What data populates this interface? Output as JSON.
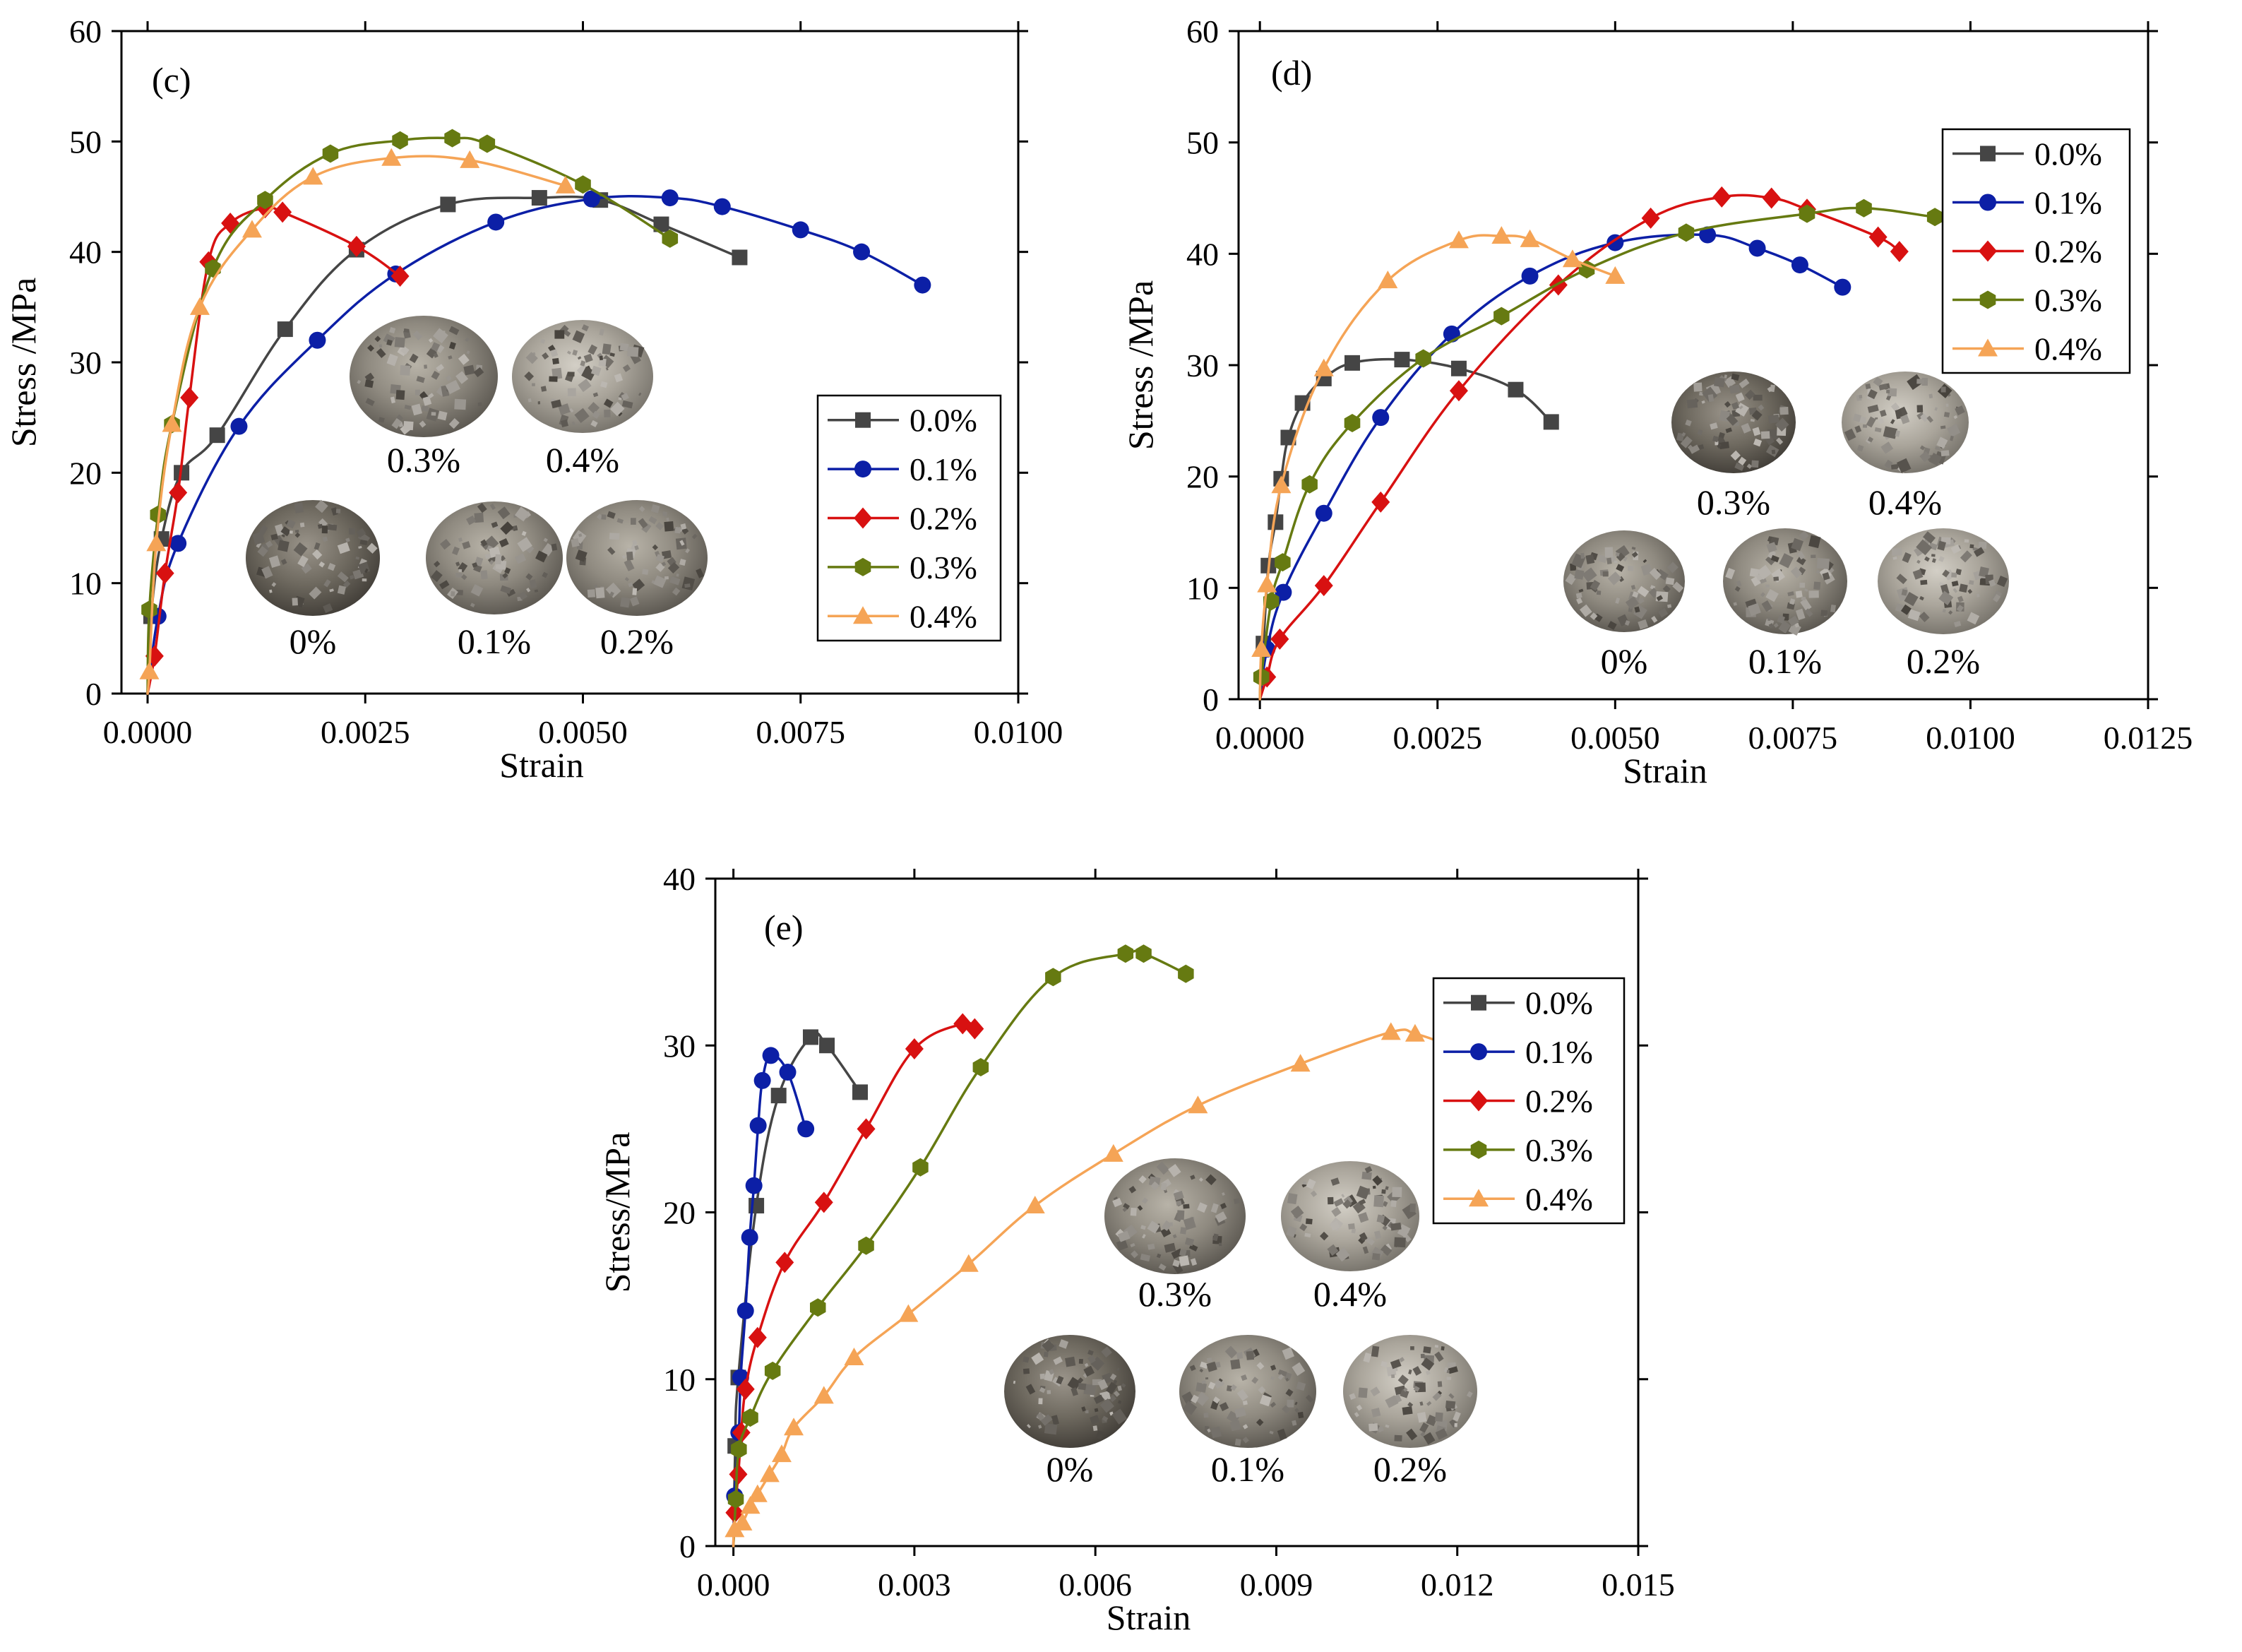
{
  "palette": {
    "0.0%": "#454545",
    "0.1%": "#0c1fa6",
    "0.2%": "#d81111",
    "0.3%": "#667a11",
    "0.4%": "#f5a456"
  },
  "photo_descriptions": {
    "0.3%": "pile of crushed stone aggregate sample",
    "0.4%": "pile of crushed stone aggregate sample",
    "0%": "pile of crushed stone aggregate sample",
    "0.1%": "pile of crushed stone aggregate sample",
    "0.2%": "pile of crushed stone aggregate sample"
  },
  "chart_data": [
    {
      "panel": "(c)",
      "type": "line",
      "xlabel": "Strain",
      "ylabel": "Stress /MPa",
      "xlim": [
        -0.0003,
        0.01
      ],
      "ylim": [
        0,
        60
      ],
      "xticks": [
        "0.0000",
        "0.0025",
        "0.0050",
        "0.0075",
        "0.0100"
      ],
      "xtick_values": [
        0,
        0.0025,
        0.005,
        0.0075,
        0.01
      ],
      "yticks": [
        "0",
        "10",
        "20",
        "30",
        "40",
        "50",
        "60"
      ],
      "ytick_values": [
        0,
        10,
        20,
        30,
        40,
        50,
        60
      ],
      "legend_position": "center-right",
      "photo_labels": [
        "0.3%",
        "0.4%",
        "0%",
        "0.1%",
        "0.2%"
      ],
      "series": [
        {
          "name": "0.0%",
          "marker": "square",
          "points": [
            [
              0,
              0
            ],
            [
              4e-05,
              7
            ],
            [
              0.00016,
              14
            ],
            [
              0.00039,
              20
            ],
            [
              0.0008,
              23.4
            ],
            [
              0.00158,
              33
            ],
            [
              0.0024,
              40.2
            ],
            [
              0.00345,
              44.3
            ],
            [
              0.0045,
              44.9
            ],
            [
              0.0052,
              44.7
            ],
            [
              0.0059,
              42.5
            ],
            [
              0.0068,
              39.5
            ]
          ]
        },
        {
          "name": "0.1%",
          "marker": "circle",
          "points": [
            [
              0,
              0
            ],
            [
              0.00012,
              7
            ],
            [
              0.00035,
              13.6
            ],
            [
              0.00105,
              24.2
            ],
            [
              0.00195,
              32
            ],
            [
              0.00285,
              38
            ],
            [
              0.004,
              42.7
            ],
            [
              0.0051,
              44.8
            ],
            [
              0.006,
              44.9
            ],
            [
              0.0066,
              44.1
            ],
            [
              0.0075,
              42
            ],
            [
              0.0082,
              40
            ],
            [
              0.0089,
              37
            ]
          ]
        },
        {
          "name": "0.2%",
          "marker": "diamond",
          "points": [
            [
              0,
              0
            ],
            [
              8e-05,
              3.4
            ],
            [
              0.0002,
              10.9
            ],
            [
              0.00035,
              18.2
            ],
            [
              0.00048,
              26.8
            ],
            [
              0.0007,
              39.1
            ],
            [
              0.00095,
              42.6
            ],
            [
              0.00135,
              44
            ],
            [
              0.00155,
              43.6
            ],
            [
              0.0024,
              40.5
            ],
            [
              0.0029,
              37.8
            ]
          ]
        },
        {
          "name": "0.3%",
          "marker": "hexagon",
          "points": [
            [
              0,
              0
            ],
            [
              2e-05,
              7.6
            ],
            [
              0.00012,
              16.2
            ],
            [
              0.00028,
              24.4
            ],
            [
              0.00075,
              38.5
            ],
            [
              0.00135,
              44.7
            ],
            [
              0.0021,
              48.9
            ],
            [
              0.0029,
              50.1
            ],
            [
              0.0035,
              50.3
            ],
            [
              0.0039,
              49.8
            ],
            [
              0.005,
              46.1
            ],
            [
              0.006,
              41.2
            ]
          ]
        },
        {
          "name": "0.4%",
          "marker": "triangle",
          "points": [
            [
              0,
              0
            ],
            [
              2e-05,
              2
            ],
            [
              0.0001,
              13.6
            ],
            [
              0.00028,
              24.4
            ],
            [
              0.0006,
              35
            ],
            [
              0.0012,
              42
            ],
            [
              0.0019,
              46.8
            ],
            [
              0.0028,
              48.5
            ],
            [
              0.0037,
              48.3
            ],
            [
              0.0048,
              46
            ]
          ]
        }
      ]
    },
    {
      "panel": "(d)",
      "type": "line",
      "xlabel": "Strain",
      "ylabel": "Stress /MPa",
      "xlim": [
        -0.0003,
        0.0125
      ],
      "ylim": [
        0,
        60
      ],
      "xticks": [
        "0.0000",
        "0.0025",
        "0.0050",
        "0.0075",
        "0.0100",
        "0.0125"
      ],
      "xtick_values": [
        0,
        0.0025,
        0.005,
        0.0075,
        0.01,
        0.0125
      ],
      "yticks": [
        "0",
        "10",
        "20",
        "30",
        "40",
        "50",
        "60"
      ],
      "ytick_values": [
        0,
        10,
        20,
        30,
        40,
        50,
        60
      ],
      "legend_position": "upper-right",
      "photo_labels": [
        "0.3%",
        "0.4%",
        "0%",
        "0.1%",
        "0.2%"
      ],
      "series": [
        {
          "name": "0.0%",
          "marker": "square",
          "points": [
            [
              0,
              0
            ],
            [
              5e-05,
              5
            ],
            [
              0.00012,
              12
            ],
            [
              0.00022,
              15.9
            ],
            [
              0.0003,
              19.8
            ],
            [
              0.0004,
              23.5
            ],
            [
              0.0006,
              26.6
            ],
            [
              0.0009,
              28.8
            ],
            [
              0.0013,
              30.2
            ],
            [
              0.002,
              30.5
            ],
            [
              0.0028,
              29.7
            ],
            [
              0.0036,
              27.8
            ],
            [
              0.0041,
              24.9
            ]
          ]
        },
        {
          "name": "0.1%",
          "marker": "circle",
          "points": [
            [
              0,
              0
            ],
            [
              0.0001,
              4.5
            ],
            [
              0.00033,
              9.6
            ],
            [
              0.0009,
              16.7
            ],
            [
              0.0017,
              25.3
            ],
            [
              0.0027,
              32.8
            ],
            [
              0.0038,
              38
            ],
            [
              0.005,
              41
            ],
            [
              0.0063,
              41.7
            ],
            [
              0.007,
              40.5
            ],
            [
              0.0076,
              39
            ],
            [
              0.0082,
              37
            ]
          ]
        },
        {
          "name": "0.2%",
          "marker": "diamond",
          "points": [
            [
              0,
              0
            ],
            [
              0.0001,
              2
            ],
            [
              0.00028,
              5.4
            ],
            [
              0.0009,
              10.2
            ],
            [
              0.0017,
              17.7
            ],
            [
              0.0028,
              27.7
            ],
            [
              0.0042,
              37.2
            ],
            [
              0.0055,
              43.2
            ],
            [
              0.0065,
              45.1
            ],
            [
              0.0072,
              45
            ],
            [
              0.0077,
              44
            ],
            [
              0.0087,
              41.5
            ],
            [
              0.009,
              40.2
            ]
          ]
        },
        {
          "name": "0.3%",
          "marker": "hexagon",
          "points": [
            [
              0,
              0
            ],
            [
              2e-05,
              2
            ],
            [
              0.00016,
              8.8
            ],
            [
              0.00032,
              12.3
            ],
            [
              0.0007,
              19.3
            ],
            [
              0.0013,
              24.8
            ],
            [
              0.0023,
              30.6
            ],
            [
              0.0034,
              34.4
            ],
            [
              0.0046,
              38.6
            ],
            [
              0.006,
              41.9
            ],
            [
              0.0077,
              43.6
            ],
            [
              0.0085,
              44.1
            ],
            [
              0.0095,
              43.3
            ],
            [
              0.01,
              42.9
            ]
          ]
        },
        {
          "name": "0.4%",
          "marker": "triangle",
          "points": [
            [
              0,
              0
            ],
            [
              2e-05,
              4.5
            ],
            [
              0.0001,
              10.3
            ],
            [
              0.0003,
              19.2
            ],
            [
              0.0009,
              29.7
            ],
            [
              0.0018,
              37.6
            ],
            [
              0.0028,
              41.2
            ],
            [
              0.0034,
              41.6
            ],
            [
              0.0038,
              41.3
            ],
            [
              0.0044,
              39.5
            ],
            [
              0.005,
              38
            ]
          ]
        }
      ]
    },
    {
      "panel": "(e)",
      "type": "line",
      "xlabel": "Strain",
      "ylabel": "Stress/MPa",
      "xlim": [
        -0.0003,
        0.015
      ],
      "ylim": [
        0,
        40
      ],
      "xticks": [
        "0.000",
        "0.003",
        "0.006",
        "0.009",
        "0.012",
        "0.015"
      ],
      "xtick_values": [
        0,
        0.003,
        0.006,
        0.009,
        0.012,
        0.015
      ],
      "yticks": [
        "0",
        "10",
        "20",
        "30",
        "40"
      ],
      "ytick_values": [
        0,
        10,
        20,
        30,
        40
      ],
      "legend_position": "upper-right",
      "photo_labels": [
        "0.3%",
        "0.4%",
        "0%",
        "0.1%",
        "0.2%"
      ],
      "series": [
        {
          "name": "0.0%",
          "marker": "square",
          "points": [
            [
              0,
              0
            ],
            [
              3e-05,
              6
            ],
            [
              8e-05,
              10.1
            ],
            [
              0.00038,
              20.4
            ],
            [
              0.00075,
              27
            ],
            [
              0.00128,
              30.5
            ],
            [
              0.00155,
              30
            ],
            [
              0.0021,
              27.2
            ]
          ]
        },
        {
          "name": "0.1%",
          "marker": "circle",
          "points": [
            [
              0,
              0
            ],
            [
              2e-05,
              3
            ],
            [
              9e-05,
              6.8
            ],
            [
              0.00012,
              10.1
            ],
            [
              0.0002,
              14.1
            ],
            [
              0.00027,
              18.5
            ],
            [
              0.00034,
              21.6
            ],
            [
              0.00041,
              25.2
            ],
            [
              0.00048,
              27.9
            ],
            [
              0.00062,
              29.4
            ],
            [
              0.0009,
              28.4
            ],
            [
              0.0012,
              25
            ]
          ]
        },
        {
          "name": "0.2%",
          "marker": "diamond",
          "points": [
            [
              0,
              0
            ],
            [
              2e-05,
              2
            ],
            [
              8e-05,
              4.3
            ],
            [
              0.00013,
              6.8
            ],
            [
              0.0002,
              9.4
            ],
            [
              0.0004,
              12.5
            ],
            [
              0.00085,
              17
            ],
            [
              0.0015,
              20.6
            ],
            [
              0.0022,
              25
            ],
            [
              0.003,
              29.8
            ],
            [
              0.0038,
              31.3
            ],
            [
              0.004,
              31
            ]
          ]
        },
        {
          "name": "0.3%",
          "marker": "hexagon",
          "points": [
            [
              0,
              0
            ],
            [
              4e-05,
              2.8
            ],
            [
              9e-05,
              5.8
            ],
            [
              0.00028,
              7.7
            ],
            [
              0.00065,
              10.5
            ],
            [
              0.0014,
              14.3
            ],
            [
              0.0022,
              18
            ],
            [
              0.0031,
              22.7
            ],
            [
              0.0041,
              28.7
            ],
            [
              0.0053,
              34.1
            ],
            [
              0.0065,
              35.5
            ],
            [
              0.0068,
              35.5
            ],
            [
              0.0075,
              34.3
            ]
          ]
        },
        {
          "name": "0.4%",
          "marker": "triangle",
          "points": [
            [
              0,
              0
            ],
            [
              2e-05,
              1
            ],
            [
              0.00015,
              1.4
            ],
            [
              0.00028,
              2.4
            ],
            [
              0.0004,
              3.1
            ],
            [
              0.0006,
              4.3
            ],
            [
              0.0008,
              5.5
            ],
            [
              0.001,
              7.1
            ],
            [
              0.0015,
              9
            ],
            [
              0.002,
              11.3
            ],
            [
              0.0029,
              13.9
            ],
            [
              0.0039,
              16.9
            ],
            [
              0.005,
              20.4
            ],
            [
              0.0063,
              23.5
            ],
            [
              0.0077,
              26.4
            ],
            [
              0.0094,
              28.9
            ],
            [
              0.0109,
              30.8
            ],
            [
              0.0113,
              30.7
            ],
            [
              0.0118,
              30.1
            ]
          ]
        }
      ]
    }
  ]
}
